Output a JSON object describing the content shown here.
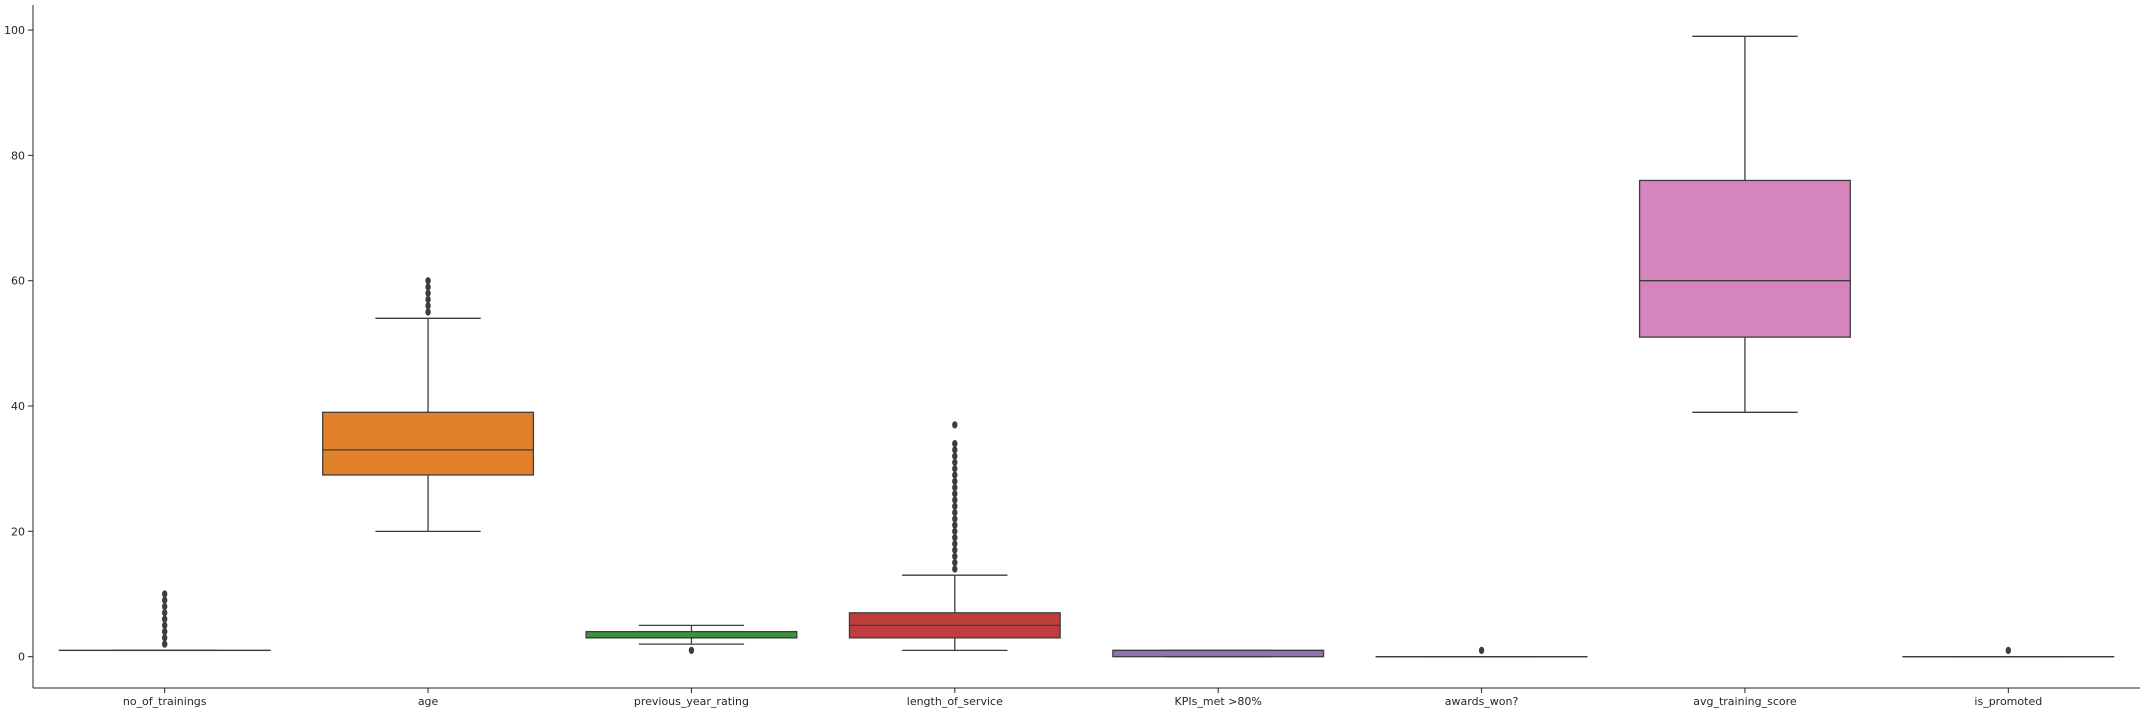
{
  "chart_data": {
    "type": "box",
    "title": "",
    "xlabel": "",
    "ylabel": "",
    "ylim": [
      -5,
      104
    ],
    "yticks": [
      0,
      20,
      40,
      60,
      80,
      100
    ],
    "ytick_labels": [
      "0",
      "20",
      "40",
      "60",
      "80",
      "100"
    ],
    "grid": false,
    "categories": [
      "no_of_trainings",
      "age",
      "previous_year_rating",
      "length_of_service",
      "KPIs_met >80%",
      "awards_won?",
      "avg_training_score",
      "is_promoted"
    ],
    "colors": [
      "#3274a1",
      "#e1812c",
      "#3a923a",
      "#c03d3e",
      "#9372b2",
      "#845b53",
      "#d684bd",
      "#7f7f7f"
    ],
    "boxes": [
      {
        "q1": 1,
        "median": 1,
        "q3": 1,
        "whisker_low": 1,
        "whisker_high": 1,
        "outliers": [
          2,
          3,
          4,
          5,
          6,
          7,
          8,
          9,
          10
        ]
      },
      {
        "q1": 29,
        "median": 33,
        "q3": 39,
        "whisker_low": 20,
        "whisker_high": 54,
        "outliers": [
          55,
          56,
          57,
          58,
          59,
          60
        ]
      },
      {
        "q1": 3,
        "median": 3,
        "q3": 4,
        "whisker_low": 2,
        "whisker_high": 5,
        "outliers": [
          1
        ]
      },
      {
        "q1": 3,
        "median": 5,
        "q3": 7,
        "whisker_low": 1,
        "whisker_high": 13,
        "outliers": [
          14,
          15,
          16,
          17,
          18,
          19,
          20,
          21,
          22,
          23,
          24,
          25,
          26,
          27,
          28,
          29,
          30,
          31,
          32,
          33,
          34,
          37
        ]
      },
      {
        "q1": 0,
        "median": 1,
        "q3": 1,
        "whisker_low": 0,
        "whisker_high": 1,
        "outliers": []
      },
      {
        "q1": 0,
        "median": 0,
        "q3": 0,
        "whisker_low": 0,
        "whisker_high": 0,
        "outliers": [
          1
        ]
      },
      {
        "q1": 51,
        "median": 60,
        "q3": 76,
        "whisker_low": 39,
        "whisker_high": 99,
        "outliers": []
      },
      {
        "q1": 0,
        "median": 0,
        "q3": 0,
        "whisker_low": 0,
        "whisker_high": 0,
        "outliers": [
          1
        ]
      }
    ]
  }
}
